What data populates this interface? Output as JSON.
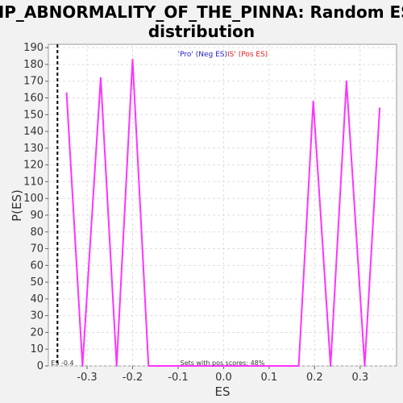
{
  "chart_data": {
    "type": "line",
    "title_line1": "HP_ABNORMALITY_OF_THE_PINNA: Random ES",
    "title_line2": "distribution",
    "xlabel": "ES",
    "ylabel": "P(ES)",
    "xlim": [
      -0.385,
      0.38
    ],
    "ylim": [
      0,
      192
    ],
    "xticks": [
      -0.3,
      -0.2,
      -0.1,
      0.0,
      0.1,
      0.2,
      0.3
    ],
    "xtick_labels": [
      "-0.3",
      "-0.2",
      "-0.1",
      "0.0",
      "0.1",
      "0.2",
      "0.3"
    ],
    "yticks": [
      0,
      10,
      20,
      30,
      40,
      50,
      60,
      70,
      80,
      90,
      100,
      110,
      120,
      130,
      140,
      150,
      160,
      170,
      180,
      190
    ],
    "grid": true,
    "legend": {
      "placement": "top-center",
      "neg_label": "'Pro' (Neg ES)",
      "pos_label": "IS' (Pos ES)"
    },
    "colors": {
      "line": "#ff33ff",
      "marker_line": "#000000",
      "legend_neg": "#2222cc",
      "legend_pos": "#dd2222"
    },
    "series": [
      {
        "x": [
          -0.345,
          -0.31,
          -0.27,
          -0.235,
          -0.2,
          -0.165,
          0.165,
          0.197,
          0.235,
          0.27,
          0.31,
          0.343
        ],
        "y": [
          163,
          0,
          172,
          0,
          183,
          0,
          0,
          158,
          0,
          170,
          0,
          154
        ]
      }
    ],
    "marker": {
      "x": -0.365,
      "label": "ES -0.4"
    },
    "annotation": "Sets with pos scores: 48%"
  }
}
